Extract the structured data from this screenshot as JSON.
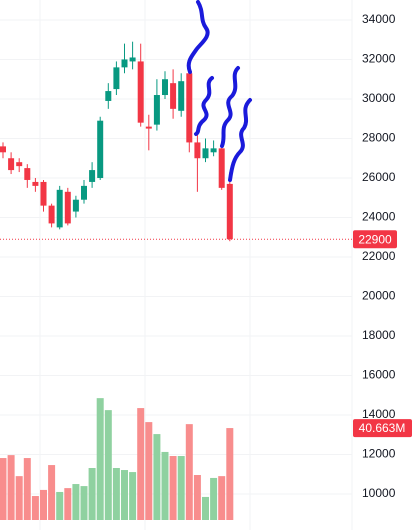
{
  "chart_data": {
    "type": "candlestick",
    "open": [
      27600,
      27000,
      26800,
      26500,
      25800,
      25800,
      24600,
      23500,
      25300,
      24300,
      24900,
      25800,
      26000,
      29900,
      30500,
      31600,
      31900,
      31900,
      28600,
      28700,
      30200,
      30800,
      29400,
      31300,
      27800,
      27000,
      27300,
      27500,
      25700
    ],
    "high": [
      27800,
      27300,
      27000,
      26700,
      26000,
      25900,
      24700,
      25600,
      25500,
      25100,
      25900,
      26800,
      29100,
      30800,
      31900,
      32800,
      32900,
      32800,
      29200,
      31000,
      31400,
      31500,
      31300,
      31900,
      28500,
      28000,
      27900,
      27800,
      26300
    ],
    "low": [
      27000,
      26200,
      26300,
      25500,
      25300,
      24300,
      23500,
      23400,
      23600,
      24000,
      24700,
      25500,
      25900,
      29500,
      30200,
      31300,
      31500,
      28600,
      27400,
      28400,
      30000,
      29000,
      29100,
      27300,
      25300,
      26800,
      27100,
      25400,
      22800
    ],
    "close": [
      27300,
      26400,
      26600,
      25900,
      25600,
      24600,
      23700,
      25400,
      23700,
      24900,
      25600,
      26400,
      28900,
      30400,
      31600,
      32000,
      32100,
      28800,
      28500,
      30200,
      31000,
      29500,
      30900,
      27800,
      27000,
      27500,
      27500,
      25500,
      22900
    ],
    "up_color": "#089981",
    "down_color": "#f23645",
    "volume": {
      "values": [
        27.4,
        28.7,
        19.4,
        27.4,
        10.6,
        13.3,
        24.3,
        12.4,
        14.1,
        15.9,
        15.0,
        23.0,
        53.9,
        48.6,
        23.0,
        22.1,
        21.2,
        49.5,
        43.3,
        38.0,
        30.1,
        28.3,
        28.3,
        42.4,
        19.9,
        10.2,
        18.6,
        19.4,
        40.663
      ],
      "value_labels": [
        null,
        null,
        null,
        null,
        null,
        null,
        null,
        null,
        null,
        null,
        null,
        null,
        null,
        null,
        null,
        null,
        null,
        null,
        null,
        null,
        null,
        null,
        null,
        null,
        null,
        null,
        null,
        null,
        "40.663M"
      ],
      "ylim": [
        0,
        230
      ],
      "up_color": "#8fd1a0",
      "down_color": "#f88d8d"
    },
    "ylim": [
      8180,
      35010
    ],
    "yticks": [
      10000,
      12000,
      14000,
      16000,
      18000,
      20000,
      22000,
      24000,
      26000,
      28000,
      30000,
      32000,
      34000
    ],
    "grid": true
  }
}
